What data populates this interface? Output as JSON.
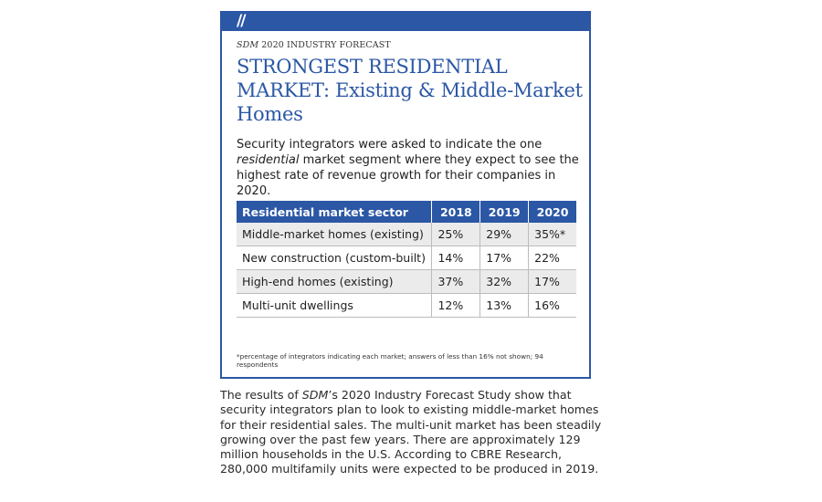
{
  "header": {
    "slashes": "//"
  },
  "kicker": {
    "publication": "SDM",
    "rest": " 2020 INDUSTRY FORECAST"
  },
  "title": "STRONGEST RESIDENTIAL MARKET: Existing & Middle-Market Homes",
  "intro": {
    "part1": "Security integrators were asked to indicate the one ",
    "emphasis": "residential",
    "part2": " market segment where they expect to see the highest rate of revenue growth for their companies in 2020."
  },
  "table": {
    "headers": [
      "Residential market sector",
      "2018",
      "2019",
      "2020"
    ],
    "rows": [
      {
        "sector": "Middle-market homes (existing)",
        "y2018": "25%",
        "y2019": "29%",
        "y2020": "35%*"
      },
      {
        "sector": "New construction (custom-built)",
        "y2018": "14%",
        "y2019": "17%",
        "y2020": "22%"
      },
      {
        "sector": "High-end homes (existing)",
        "y2018": "37%",
        "y2019": "32%",
        "y2020": "17%"
      },
      {
        "sector": "Multi-unit dwellings",
        "y2018": "12%",
        "y2019": "13%",
        "y2020": "16%"
      }
    ]
  },
  "footnote": "*percentage of integrators indicating each market; answers of less than 16% not shown; 94 respondents",
  "article": {
    "part1": "The results of ",
    "emphasis": "SDM",
    "part2": "’s 2020 Industry Forecast Study show that security integrators plan to look to existing middle-market homes for their residential sales. The multi-unit market has been steadily growing over the past few years. There are approximately 129 million households in the U.S. According to CBRE Research, 280,000 multifamily units were expected to be produced in 2019."
  },
  "colors": {
    "brand_blue": "#2b57a5",
    "row_shade": "#ebebeb"
  }
}
